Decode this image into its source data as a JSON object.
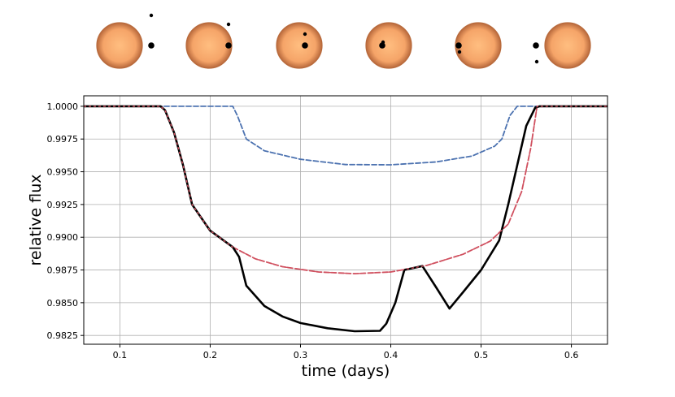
{
  "chart_data": {
    "type": "line",
    "xlabel": "time (days)",
    "ylabel": "relative flux",
    "xlim": [
      0.06,
      0.64
    ],
    "ylim": [
      0.98183,
      1.0008
    ],
    "xticks": [
      0.1,
      0.2,
      0.3,
      0.4,
      0.5,
      0.6
    ],
    "xtick_labels": [
      "0.1",
      "0.2",
      "0.3",
      "0.4",
      "0.5",
      "0.6"
    ],
    "yticks": [
      0.9825,
      0.985,
      0.9875,
      0.99,
      0.9925,
      0.995,
      0.9975,
      1.0
    ],
    "ytick_labels": [
      "0.9825",
      "0.9850",
      "0.9875",
      "0.9900",
      "0.9925",
      "0.9950",
      "0.9975",
      "1.0000"
    ],
    "grid": true,
    "legend": "none",
    "series": [
      {
        "color": "#4c72b0",
        "style": "dashed",
        "points": [
          [
            0.06,
            1.0
          ],
          [
            0.225,
            1.0
          ],
          [
            0.23,
            0.9993
          ],
          [
            0.24,
            0.9975
          ],
          [
            0.26,
            0.9966
          ],
          [
            0.3,
            0.99595
          ],
          [
            0.35,
            0.99555
          ],
          [
            0.4,
            0.99553
          ],
          [
            0.45,
            0.99575
          ],
          [
            0.49,
            0.9962
          ],
          [
            0.515,
            0.99695
          ],
          [
            0.523,
            0.9975
          ],
          [
            0.532,
            0.9993
          ],
          [
            0.54,
            1.0
          ],
          [
            0.64,
            1.0
          ]
        ]
      },
      {
        "color": "#d0505f",
        "style": "dashed",
        "points": [
          [
            0.06,
            1.0
          ],
          [
            0.145,
            1.0
          ],
          [
            0.15,
            0.9997
          ],
          [
            0.16,
            0.998
          ],
          [
            0.17,
            0.9955
          ],
          [
            0.18,
            0.9925
          ],
          [
            0.2,
            0.9905
          ],
          [
            0.225,
            0.98925
          ],
          [
            0.25,
            0.98835
          ],
          [
            0.28,
            0.98775
          ],
          [
            0.32,
            0.98735
          ],
          [
            0.36,
            0.98722
          ],
          [
            0.4,
            0.98735
          ],
          [
            0.44,
            0.98785
          ],
          [
            0.48,
            0.9887
          ],
          [
            0.51,
            0.9897
          ],
          [
            0.53,
            0.991
          ],
          [
            0.545,
            0.9935
          ],
          [
            0.555,
            0.9968
          ],
          [
            0.562,
            1.0
          ],
          [
            0.64,
            1.0
          ]
        ]
      },
      {
        "color": "#000000",
        "style": "solid",
        "points": [
          [
            0.06,
            1.0
          ],
          [
            0.145,
            1.0
          ],
          [
            0.15,
            0.9997
          ],
          [
            0.16,
            0.998
          ],
          [
            0.17,
            0.9955
          ],
          [
            0.18,
            0.9925
          ],
          [
            0.2,
            0.9905
          ],
          [
            0.225,
            0.98925
          ],
          [
            0.232,
            0.9885
          ],
          [
            0.24,
            0.9863
          ],
          [
            0.26,
            0.98475
          ],
          [
            0.28,
            0.98395
          ],
          [
            0.3,
            0.98345
          ],
          [
            0.33,
            0.98305
          ],
          [
            0.36,
            0.98282
          ],
          [
            0.388,
            0.98285
          ],
          [
            0.395,
            0.9834
          ],
          [
            0.405,
            0.985
          ],
          [
            0.415,
            0.9875
          ],
          [
            0.435,
            0.9878
          ],
          [
            0.45,
            0.9862
          ],
          [
            0.465,
            0.98455
          ],
          [
            0.48,
            0.9858
          ],
          [
            0.5,
            0.9875
          ],
          [
            0.52,
            0.98975
          ],
          [
            0.53,
            0.9925
          ],
          [
            0.54,
            0.9955
          ],
          [
            0.55,
            0.9985
          ],
          [
            0.56,
            0.9999
          ],
          [
            0.565,
            1.0
          ],
          [
            0.64,
            1.0
          ]
        ]
      }
    ]
  },
  "transit_illustration": {
    "star_color": "#f4a460",
    "panels": 6
  }
}
